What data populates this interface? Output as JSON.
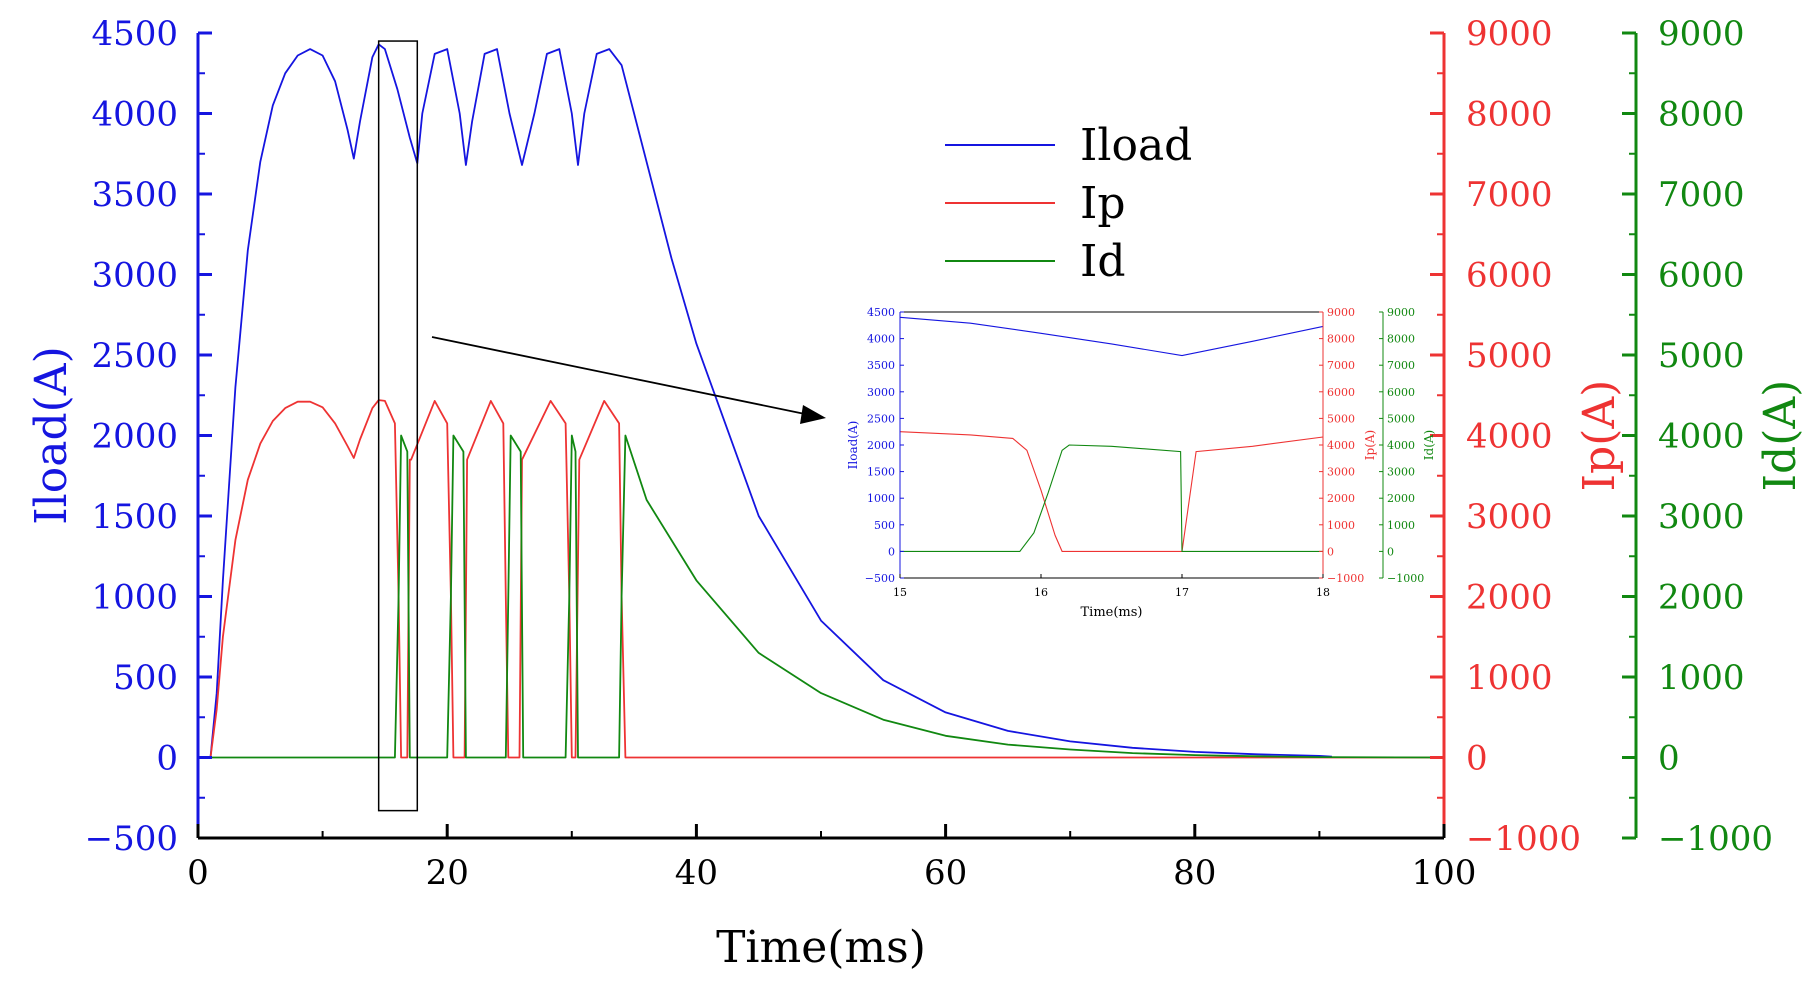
{
  "chart_data": {
    "type": "line",
    "xlabel": "Time(ms)",
    "xlim": [
      0,
      100
    ],
    "xticks": [
      0,
      20,
      40,
      60,
      80,
      100
    ],
    "axes": [
      {
        "id": "iload",
        "label": "Iload(A)",
        "side": "left",
        "ylim": [
          -500,
          4500
        ],
        "ticks": [
          -500,
          0,
          500,
          1000,
          1500,
          2000,
          2500,
          3000,
          3500,
          4000,
          4500
        ],
        "color": "#1515e0"
      },
      {
        "id": "ip",
        "label": "Ip(A)",
        "side": "right",
        "ylim": [
          -1000,
          9000
        ],
        "ticks": [
          -1000,
          0,
          1000,
          2000,
          3000,
          4000,
          5000,
          6000,
          7000,
          8000,
          9000
        ],
        "color": "#ee3333"
      },
      {
        "id": "id",
        "label": "Id(A)",
        "side": "right-outer",
        "ylim": [
          -1000,
          9000
        ],
        "ticks": [
          -1000,
          0,
          1000,
          2000,
          3000,
          4000,
          5000,
          6000,
          7000,
          8000,
          9000
        ],
        "color": "#118811"
      }
    ],
    "series": [
      {
        "name": "Iload",
        "axis": "iload",
        "color": "#1515e0",
        "x": [
          1,
          1.5,
          2,
          3,
          4,
          5,
          6,
          7,
          8,
          9,
          10,
          11,
          12,
          12.5,
          13,
          14,
          14.5,
          15,
          16,
          17,
          17.6,
          18,
          19,
          20,
          21,
          21.5,
          22,
          23,
          24,
          25,
          26,
          27,
          28,
          29,
          30,
          30.5,
          31,
          32,
          33,
          34,
          35,
          38,
          40,
          45,
          50,
          55,
          60,
          65,
          70,
          75,
          80,
          85,
          90,
          91
        ],
        "y": [
          0,
          400,
          1100,
          2300,
          3150,
          3700,
          4050,
          4250,
          4360,
          4400,
          4360,
          4200,
          3900,
          3720,
          3950,
          4350,
          4430,
          4400,
          4150,
          3850,
          3690,
          4000,
          4370,
          4400,
          4000,
          3680,
          3950,
          4370,
          4400,
          4000,
          3680,
          4000,
          4370,
          4400,
          4000,
          3680,
          4000,
          4370,
          4400,
          4300,
          4000,
          3100,
          2570,
          1500,
          850,
          480,
          280,
          165,
          100,
          60,
          35,
          20,
          10,
          5
        ]
      },
      {
        "name": "Ip",
        "axis": "ip",
        "color": "#ee3333",
        "x": [
          1,
          1.5,
          2,
          3,
          4,
          5,
          6,
          7,
          8,
          9,
          10,
          11,
          12,
          12.5,
          13,
          14,
          14.5,
          15,
          15.8,
          16.1,
          16.3,
          16.8,
          17,
          17.1,
          19,
          20,
          20.3,
          20.5,
          21.4,
          21.6,
          23.5,
          24.5,
          24.7,
          24.9,
          25.8,
          26,
          28.3,
          29.5,
          29.8,
          30,
          30.3,
          30.6,
          32.6,
          33.8,
          34,
          34.3,
          100
        ],
        "y": [
          0,
          600,
          1500,
          2700,
          3450,
          3900,
          4180,
          4340,
          4420,
          4420,
          4350,
          4150,
          3870,
          3720,
          3950,
          4340,
          4440,
          4430,
          4150,
          2000,
          0,
          0,
          3700,
          3700,
          4430,
          4150,
          2000,
          0,
          0,
          3700,
          4430,
          4150,
          2000,
          0,
          0,
          3700,
          4430,
          4150,
          2000,
          0,
          0,
          3700,
          4430,
          4150,
          2000,
          0,
          0
        ]
      },
      {
        "name": "Id",
        "axis": "id",
        "color": "#118811",
        "x": [
          0,
          15.8,
          16.1,
          16.3,
          16.8,
          17,
          17.1,
          20,
          20.3,
          20.5,
          21.3,
          21.5,
          21.7,
          24.7,
          24.9,
          25.1,
          25.9,
          26.1,
          26.3,
          29.5,
          29.8,
          30,
          30.3,
          30.5,
          30.7,
          33.8,
          34,
          34.3,
          36,
          40,
          45,
          50,
          55,
          60,
          65,
          70,
          75,
          80,
          85,
          90,
          100
        ],
        "y": [
          0,
          0,
          2000,
          4000,
          3800,
          0,
          0,
          0,
          2000,
          4000,
          3800,
          0,
          0,
          0,
          2000,
          4000,
          3800,
          0,
          0,
          0,
          2000,
          4000,
          3800,
          0,
          0,
          0,
          2000,
          4000,
          3200,
          2200,
          1300,
          800,
          470,
          270,
          160,
          100,
          55,
          30,
          15,
          5,
          0
        ]
      }
    ],
    "legend": {
      "position": "top-right",
      "entries": [
        "Iload",
        "Ip",
        "Id"
      ]
    },
    "highlight_box": {
      "x_range": [
        14.5,
        17.6
      ],
      "y_range": [
        -330,
        4450
      ]
    },
    "inset": {
      "xlabel": "Time(ms)",
      "xlim": [
        15,
        18
      ],
      "xticks": [
        15,
        16,
        17,
        18
      ],
      "axes": [
        {
          "id": "iload",
          "label": "Iload(A)",
          "ylim": [
            -500,
            4500
          ],
          "ticks": [
            -500,
            0,
            500,
            1000,
            1500,
            2000,
            2500,
            3000,
            3500,
            4000,
            4500
          ],
          "color": "#1515e0"
        },
        {
          "id": "ip",
          "label": "Ip(A)",
          "ylim": [
            -1000,
            9000
          ],
          "ticks": [
            -1000,
            0,
            1000,
            2000,
            3000,
            4000,
            5000,
            6000,
            7000,
            8000,
            9000
          ],
          "color": "#ee3333"
        },
        {
          "id": "id",
          "label": "Id(A)",
          "ylim": [
            -1000,
            9000
          ],
          "ticks": [
            -1000,
            0,
            1000,
            2000,
            3000,
            4000,
            5000,
            6000,
            7000,
            8000,
            9000
          ],
          "color": "#118811"
        }
      ],
      "series": [
        {
          "name": "Iload",
          "axis": "iload",
          "color": "#1515e0",
          "x": [
            15,
            15.5,
            16,
            16.5,
            17,
            17.5,
            18
          ],
          "y": [
            4400,
            4290,
            4100,
            3900,
            3680,
            3950,
            4230
          ]
        },
        {
          "name": "Ip",
          "axis": "ip",
          "color": "#ee3333",
          "x": [
            15,
            15.5,
            15.8,
            15.9,
            16.0,
            16.1,
            16.15,
            17,
            17.1,
            17.5,
            18
          ],
          "y": [
            4500,
            4380,
            4250,
            3800,
            2300,
            600,
            0,
            0,
            3750,
            3950,
            4300
          ]
        },
        {
          "name": "Id",
          "axis": "id",
          "color": "#118811",
          "x": [
            15,
            15.85,
            15.95,
            16.05,
            16.15,
            16.2,
            16.5,
            16.99,
            17.0,
            17.01,
            18
          ],
          "y": [
            0,
            0,
            700,
            2200,
            3800,
            4000,
            3950,
            3750,
            0,
            0,
            0
          ]
        }
      ]
    }
  }
}
